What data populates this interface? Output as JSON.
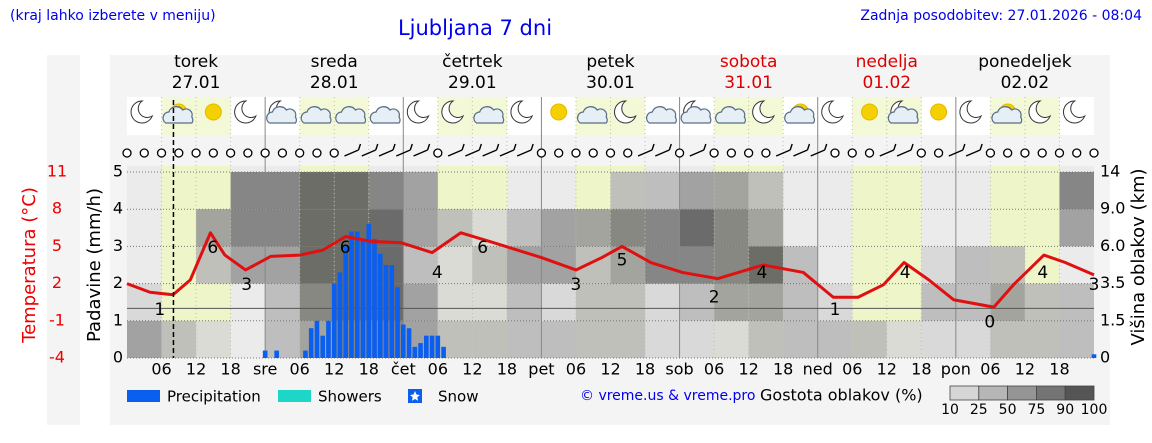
{
  "header": {
    "left": "(kraj lahko izberete v meniju)",
    "title": "Ljubljana 7 dni",
    "right": "Zadnja posodobitev: 27.01.2026 - 08:04"
  },
  "chart_data": {
    "type": "meteogram",
    "days": [
      {
        "name": "torek",
        "date": "27.01",
        "weekend": false
      },
      {
        "name": "sreda",
        "date": "28.01",
        "weekend": false
      },
      {
        "name": "četrtek",
        "date": "29.01",
        "weekend": false
      },
      {
        "name": "petek",
        "date": "30.01",
        "weekend": false
      },
      {
        "name": "sobota",
        "date": "31.01",
        "weekend": true
      },
      {
        "name": "nedelja",
        "date": "01.02",
        "weekend": true
      },
      {
        "name": "ponedeljek",
        "date": "02.02",
        "weekend": false
      }
    ],
    "weekday_color": "#000000",
    "weekend_color": "#dd0000",
    "xlim": [
      0,
      168
    ],
    "xticks": [
      {
        "value": 6,
        "label": "06"
      },
      12,
      18,
      {
        "value": 24,
        "label": "sre"
      },
      {
        "value": 30,
        "label": "06"
      },
      {
        "value": 36,
        "label": "12"
      },
      {
        "value": 42,
        "label": "18"
      },
      {
        "value": 48,
        "label": "čet"
      },
      {
        "value": 54,
        "label": "06"
      },
      {
        "value": 60,
        "label": "12"
      },
      {
        "value": 66,
        "label": "18"
      },
      {
        "value": 72,
        "label": "pet"
      },
      {
        "value": 78,
        "label": "06"
      },
      {
        "value": 84,
        "label": "12"
      },
      {
        "value": 90,
        "label": "18"
      },
      {
        "value": 96,
        "label": "sob"
      },
      {
        "value": 102,
        "label": "06"
      },
      {
        "value": 108,
        "label": "12"
      },
      {
        "value": 114,
        "label": "18"
      },
      {
        "value": 120,
        "label": "ned"
      },
      {
        "value": 126,
        "label": "06"
      },
      {
        "value": 132,
        "label": "12"
      },
      {
        "value": 138,
        "label": "18"
      },
      {
        "value": 144,
        "label": "pon"
      },
      {
        "value": 150,
        "label": "06"
      },
      {
        "value": 156,
        "label": "12"
      },
      {
        "value": 162,
        "label": "18"
      }
    ],
    "ylabel": "Padavine (mm/h)",
    "ylim": [
      0,
      5
    ],
    "yticks": [
      0,
      1,
      2,
      3,
      4,
      5
    ],
    "y2label": "Višina oblakov (km)",
    "y2lim": [
      0,
      14
    ],
    "y2ticks": [
      0,
      1.5,
      3.5,
      {
        "value": 6,
        "label": "6.0"
      },
      {
        "value": 9,
        "label": "9.0"
      },
      14
    ],
    "tlabel": "Temperatura (°C)",
    "tlim": [
      -4,
      11
    ],
    "tticks": [
      -4,
      -1,
      2,
      5,
      8,
      11
    ],
    "tcolor": "#ee0000",
    "freezing_level": 0,
    "now": 8.07,
    "temperature": {
      "color": "#e01010",
      "x": [
        0,
        4,
        8,
        11,
        14.5,
        17,
        20.6,
        25,
        30,
        34,
        38,
        42.4,
        47.6,
        53,
        58,
        63,
        72,
        78,
        82.5,
        86,
        91,
        96.5,
        102.6,
        110.5,
        117.5,
        122.7,
        127,
        131.4,
        135,
        139.3,
        143.6,
        150.6,
        154,
        159.3,
        163,
        168
      ],
      "values": [
        2.0,
        1.3,
        1.1,
        2.3,
        6.1,
        4.3,
        3.1,
        4.2,
        4.3,
        4.7,
        5.8,
        5.4,
        5.3,
        4.5,
        6.1,
        5.4,
        4.1,
        3.1,
        4.1,
        5.0,
        3.7,
        2.9,
        2.4,
        3.5,
        2.9,
        0.9,
        0.9,
        1.9,
        3.7,
        2.3,
        0.7,
        0.1,
        1.9,
        4.3,
        3.7,
        2.7
      ]
    },
    "temperature_labels": [
      {
        "x": 5.7,
        "value": 1
      },
      {
        "x": 14.9,
        "value": 6
      },
      {
        "x": 20.8,
        "value": 3
      },
      {
        "x": 37.9,
        "value": 6
      },
      {
        "x": 53.9,
        "value": 4
      },
      {
        "x": 61.8,
        "value": 6
      },
      {
        "x": 78,
        "value": 3
      },
      {
        "x": 86,
        "value": 5
      },
      {
        "x": 102,
        "value": 2
      },
      {
        "x": 110.3,
        "value": 4
      },
      {
        "x": 123,
        "value": 1
      },
      {
        "x": 135.2,
        "value": 4
      },
      {
        "x": 149.9,
        "value": 0
      },
      {
        "x": 159.1,
        "value": 4
      },
      {
        "x": 168,
        "value": 3
      }
    ],
    "series": [
      {
        "name": "Precipitation",
        "color": "#0a5ef0",
        "x": [
          24,
          26,
          31,
          32,
          33,
          34,
          35,
          36,
          37,
          38,
          39,
          40,
          41,
          42,
          43,
          44,
          45,
          46,
          47,
          48,
          49,
          50,
          51,
          52,
          53,
          54,
          55,
          168
        ],
        "values": [
          0.2,
          0.2,
          0.2,
          0.8,
          1.0,
          0.6,
          1.0,
          2.0,
          2.3,
          3.0,
          3.4,
          3.4,
          3.2,
          3.6,
          3.2,
          2.8,
          2.5,
          2.5,
          1.9,
          0.9,
          0.8,
          0.3,
          0.4,
          0.6,
          0.6,
          0.6,
          0.3,
          0.1
        ]
      },
      {
        "name": "Showers",
        "color": "#1ed6c8",
        "x": [],
        "values": []
      },
      {
        "name": "Snow",
        "color": "#0a5ef0",
        "x": [],
        "values": []
      }
    ],
    "clouds": {
      "x": [
        0,
        6,
        12,
        18,
        24,
        30,
        36,
        42,
        48,
        54,
        60,
        66,
        72,
        78,
        84,
        90,
        96,
        102,
        108,
        114,
        120,
        126,
        132,
        138,
        144,
        150,
        156,
        162,
        168
      ],
      "values": [
        [
          50,
          25,
          10,
          0,
          25,
          50,
          75,
          75,
          50,
          25,
          25,
          25,
          25,
          25,
          25,
          10,
          10,
          10,
          25,
          25,
          25,
          25,
          10,
          10,
          10,
          25,
          25,
          25
        ],
        [
          10,
          0,
          0,
          0,
          25,
          75,
          90,
          90,
          50,
          10,
          10,
          25,
          10,
          25,
          25,
          10,
          25,
          50,
          50,
          25,
          10,
          0,
          0,
          25,
          25,
          50,
          25,
          25
        ],
        [
          0,
          0,
          25,
          50,
          50,
          90,
          100,
          90,
          25,
          10,
          25,
          50,
          50,
          25,
          50,
          75,
          75,
          75,
          90,
          25,
          0,
          0,
          0,
          10,
          25,
          25,
          0,
          0
        ],
        [
          0,
          0,
          50,
          75,
          75,
          90,
          100,
          90,
          50,
          25,
          10,
          25,
          50,
          50,
          75,
          75,
          90,
          75,
          50,
          0,
          0,
          0,
          0,
          0,
          0,
          0,
          0,
          50
        ],
        [
          0,
          0,
          0,
          75,
          75,
          90,
          90,
          75,
          50,
          0,
          0,
          0,
          0,
          0,
          25,
          25,
          50,
          50,
          25,
          0,
          0,
          0,
          0,
          0,
          0,
          0,
          0,
          75
        ]
      ]
    },
    "cloud_scale": {
      "title": "Gostota oblakov (%)",
      "ticks": [
        10,
        25,
        50,
        75,
        90,
        100
      ],
      "colors": [
        "#d6d6d6",
        "#b6b6b6",
        "#959595",
        "#747474",
        "#555555"
      ]
    },
    "credit": "© vreme.us & vreme.pro"
  }
}
